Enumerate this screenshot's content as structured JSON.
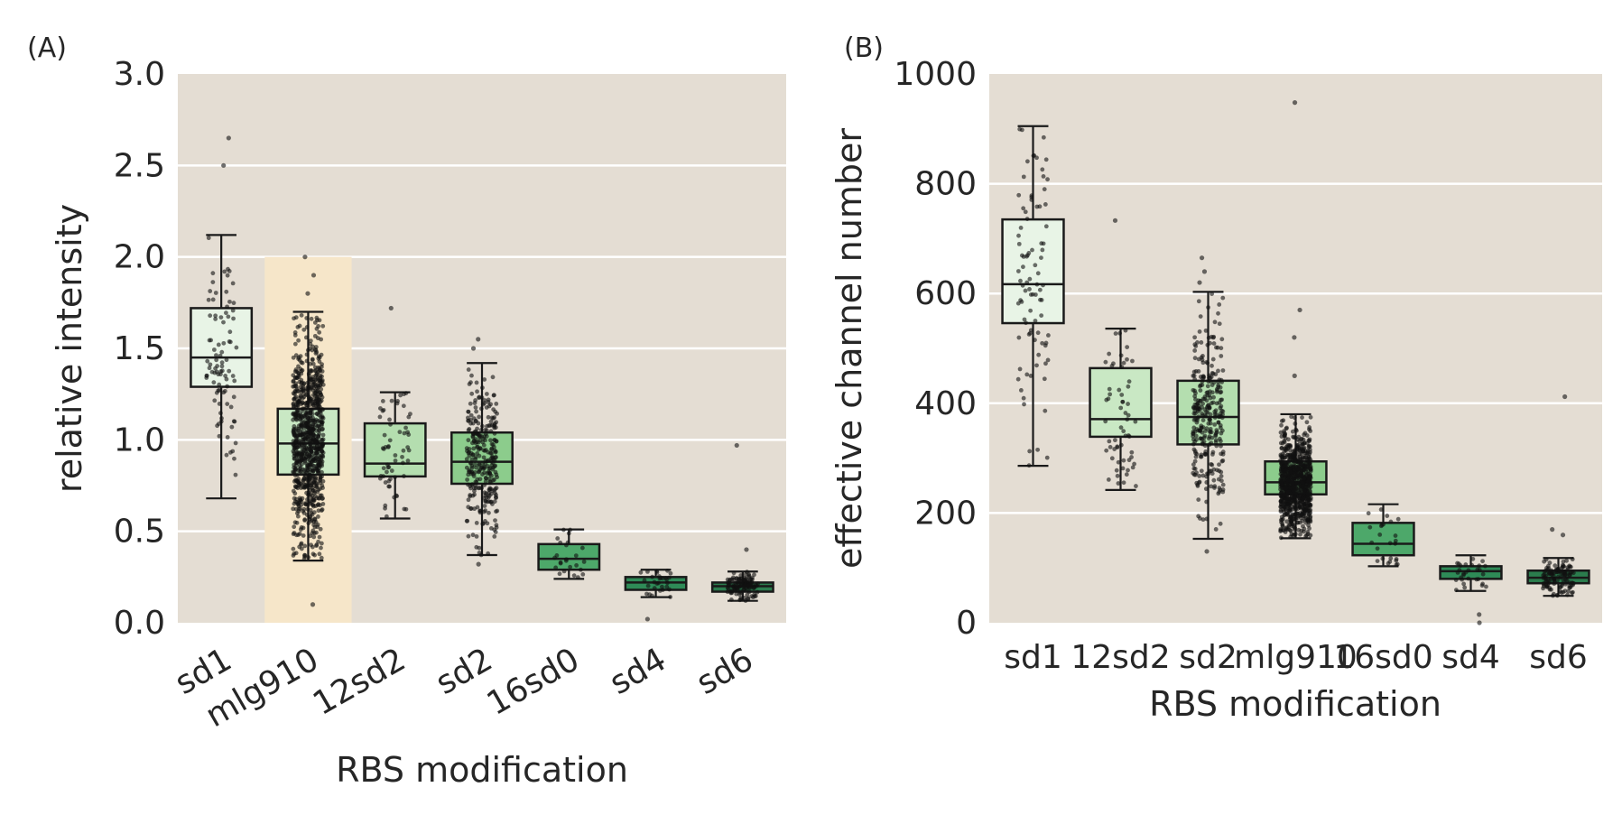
{
  "chart_data": [
    {
      "panel_label": "(A)",
      "type": "box",
      "xlabel": "RBS modification",
      "ylabel": "relative intensity",
      "ylim": [
        0,
        3.0
      ],
      "yticks": [
        "0.0",
        "0.5",
        "1.0",
        "1.5",
        "2.0",
        "2.5",
        "3.0"
      ],
      "categories": [
        "sd1",
        "mlg910",
        "12sd2",
        "sd2",
        "16sd0",
        "sd4",
        "sd6"
      ],
      "xtick_rotation": -30,
      "grid": true,
      "highlight": {
        "category": "mlg910",
        "ymin": 0,
        "ymax": 2.0,
        "color": "#f6e6c9"
      },
      "colors": [
        "#e8f4e6",
        "#c9e8c4",
        "#b4deaf",
        "#8ccc8c",
        "#4da86a",
        "#2e8b57",
        "#2b7c4d"
      ],
      "boxes": [
        {
          "q1": 1.29,
          "median": 1.45,
          "q3": 1.72,
          "whisker_low": 0.68,
          "whisker_high": 2.12,
          "outliers": [
            2.5,
            2.65
          ],
          "n": 90
        },
        {
          "q1": 0.81,
          "median": 0.98,
          "q3": 1.17,
          "whisker_low": 0.34,
          "whisker_high": 1.7,
          "outliers": [
            1.8,
            1.9,
            2.0,
            0.1
          ],
          "n": 900
        },
        {
          "q1": 0.8,
          "median": 0.87,
          "q3": 1.09,
          "whisker_low": 0.57,
          "whisker_high": 1.26,
          "outliers": [
            1.72
          ],
          "n": 60
        },
        {
          "q1": 0.76,
          "median": 0.88,
          "q3": 1.04,
          "whisker_low": 0.37,
          "whisker_high": 1.42,
          "outliers": [
            1.5,
            1.55,
            0.32
          ],
          "n": 300
        },
        {
          "q1": 0.29,
          "median": 0.35,
          "q3": 0.43,
          "whisker_low": 0.24,
          "whisker_high": 0.51,
          "outliers": [],
          "n": 25
        },
        {
          "q1": 0.18,
          "median": 0.22,
          "q3": 0.25,
          "whisker_low": 0.14,
          "whisker_high": 0.29,
          "outliers": [
            0.02
          ],
          "n": 30
        },
        {
          "q1": 0.17,
          "median": 0.2,
          "q3": 0.22,
          "whisker_low": 0.12,
          "whisker_high": 0.28,
          "outliers": [
            0.4,
            0.97
          ],
          "n": 120
        }
      ]
    },
    {
      "panel_label": "(B)",
      "type": "box",
      "xlabel": "RBS modification",
      "ylabel": "effective channel number",
      "ylim": [
        0,
        1000
      ],
      "yticks": [
        "0",
        "200",
        "400",
        "600",
        "800",
        "1000"
      ],
      "categories": [
        "sd1",
        "12sd2",
        "sd2",
        "mlg910",
        "16sd0",
        "sd4",
        "sd6"
      ],
      "xtick_rotation": 0,
      "grid": true,
      "colors": [
        "#e8f4e6",
        "#c9e8c4",
        "#b4deaf",
        "#8ccc8c",
        "#4da86a",
        "#2e8b57",
        "#2b7c4d"
      ],
      "boxes": [
        {
          "q1": 546,
          "median": 617,
          "q3": 735,
          "whisker_low": 286,
          "whisker_high": 905,
          "outliers": [],
          "n": 90
        },
        {
          "q1": 339,
          "median": 371,
          "q3": 464,
          "whisker_low": 242,
          "whisker_high": 536,
          "outliers": [
            733
          ],
          "n": 60
        },
        {
          "q1": 325,
          "median": 375,
          "q3": 441,
          "whisker_low": 153,
          "whisker_high": 603,
          "outliers": [
            620,
            640,
            665,
            130
          ],
          "n": 300
        },
        {
          "q1": 234,
          "median": 256,
          "q3": 294,
          "whisker_low": 154,
          "whisker_high": 380,
          "outliers": [
            450,
            520,
            570,
            948
          ],
          "n": 900
        },
        {
          "q1": 123,
          "median": 144,
          "q3": 182,
          "whisker_low": 103,
          "whisker_high": 216,
          "outliers": [],
          "n": 25
        },
        {
          "q1": 80,
          "median": 94,
          "q3": 103,
          "whisker_low": 58,
          "whisker_high": 123,
          "outliers": [
            15,
            0
          ],
          "n": 30
        },
        {
          "q1": 72,
          "median": 82,
          "q3": 95,
          "whisker_low": 49,
          "whisker_high": 118,
          "outliers": [
            160,
            170,
            412
          ],
          "n": 120
        }
      ]
    }
  ]
}
